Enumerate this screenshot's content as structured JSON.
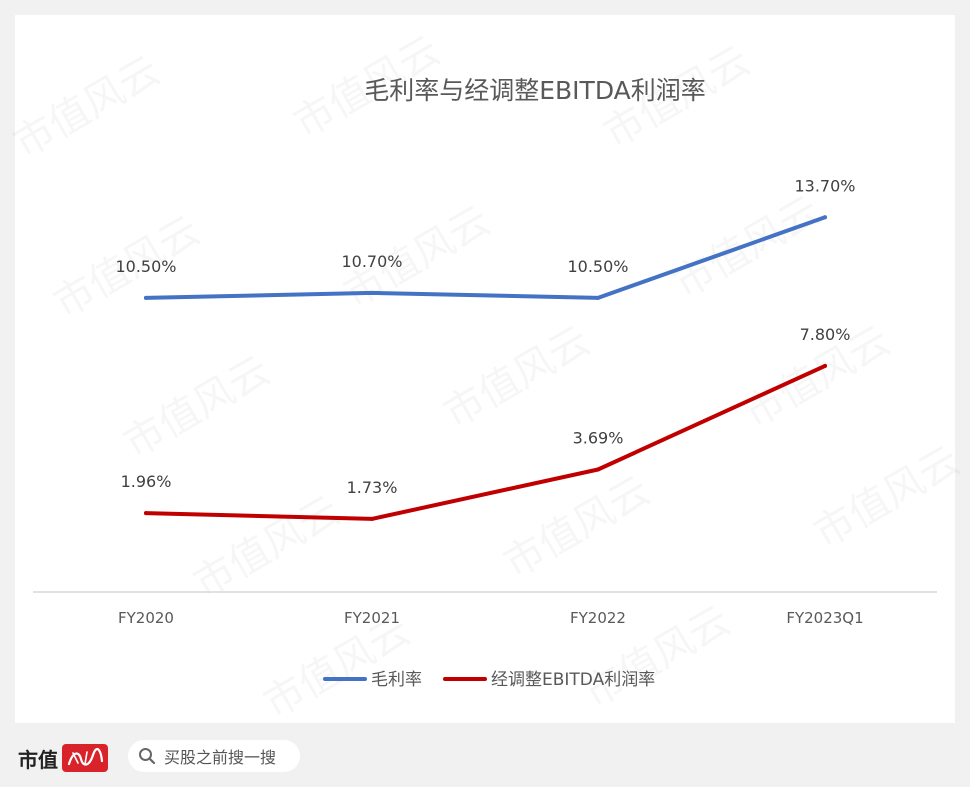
{
  "chart_data": {
    "type": "line",
    "title": "毛利率与经调整EBITDA利润率",
    "categories": [
      "FY2020",
      "FY2021",
      "FY2022",
      "FY2023Q1"
    ],
    "series": [
      {
        "name": "毛利率",
        "color": "#4472c4",
        "values": [
          10.5,
          10.7,
          10.5,
          13.7
        ],
        "labels": [
          "10.50%",
          "10.70%",
          "10.50%",
          "13.70%"
        ]
      },
      {
        "name": "经调整EBITDA利润率",
        "color": "#c00000",
        "values": [
          1.96,
          1.73,
          3.69,
          7.8
        ],
        "labels": [
          "1.96%",
          "1.73%",
          "3.69%",
          "7.80%"
        ]
      }
    ],
    "grid": false,
    "legend": "bottom"
  },
  "watermark": {
    "text": "市值风云"
  },
  "footer": {
    "brand": "市值",
    "brand_seal_icon": "fengyun-seal-icon",
    "search_icon": "search-icon",
    "search_placeholder": "买股之前搜一搜"
  }
}
